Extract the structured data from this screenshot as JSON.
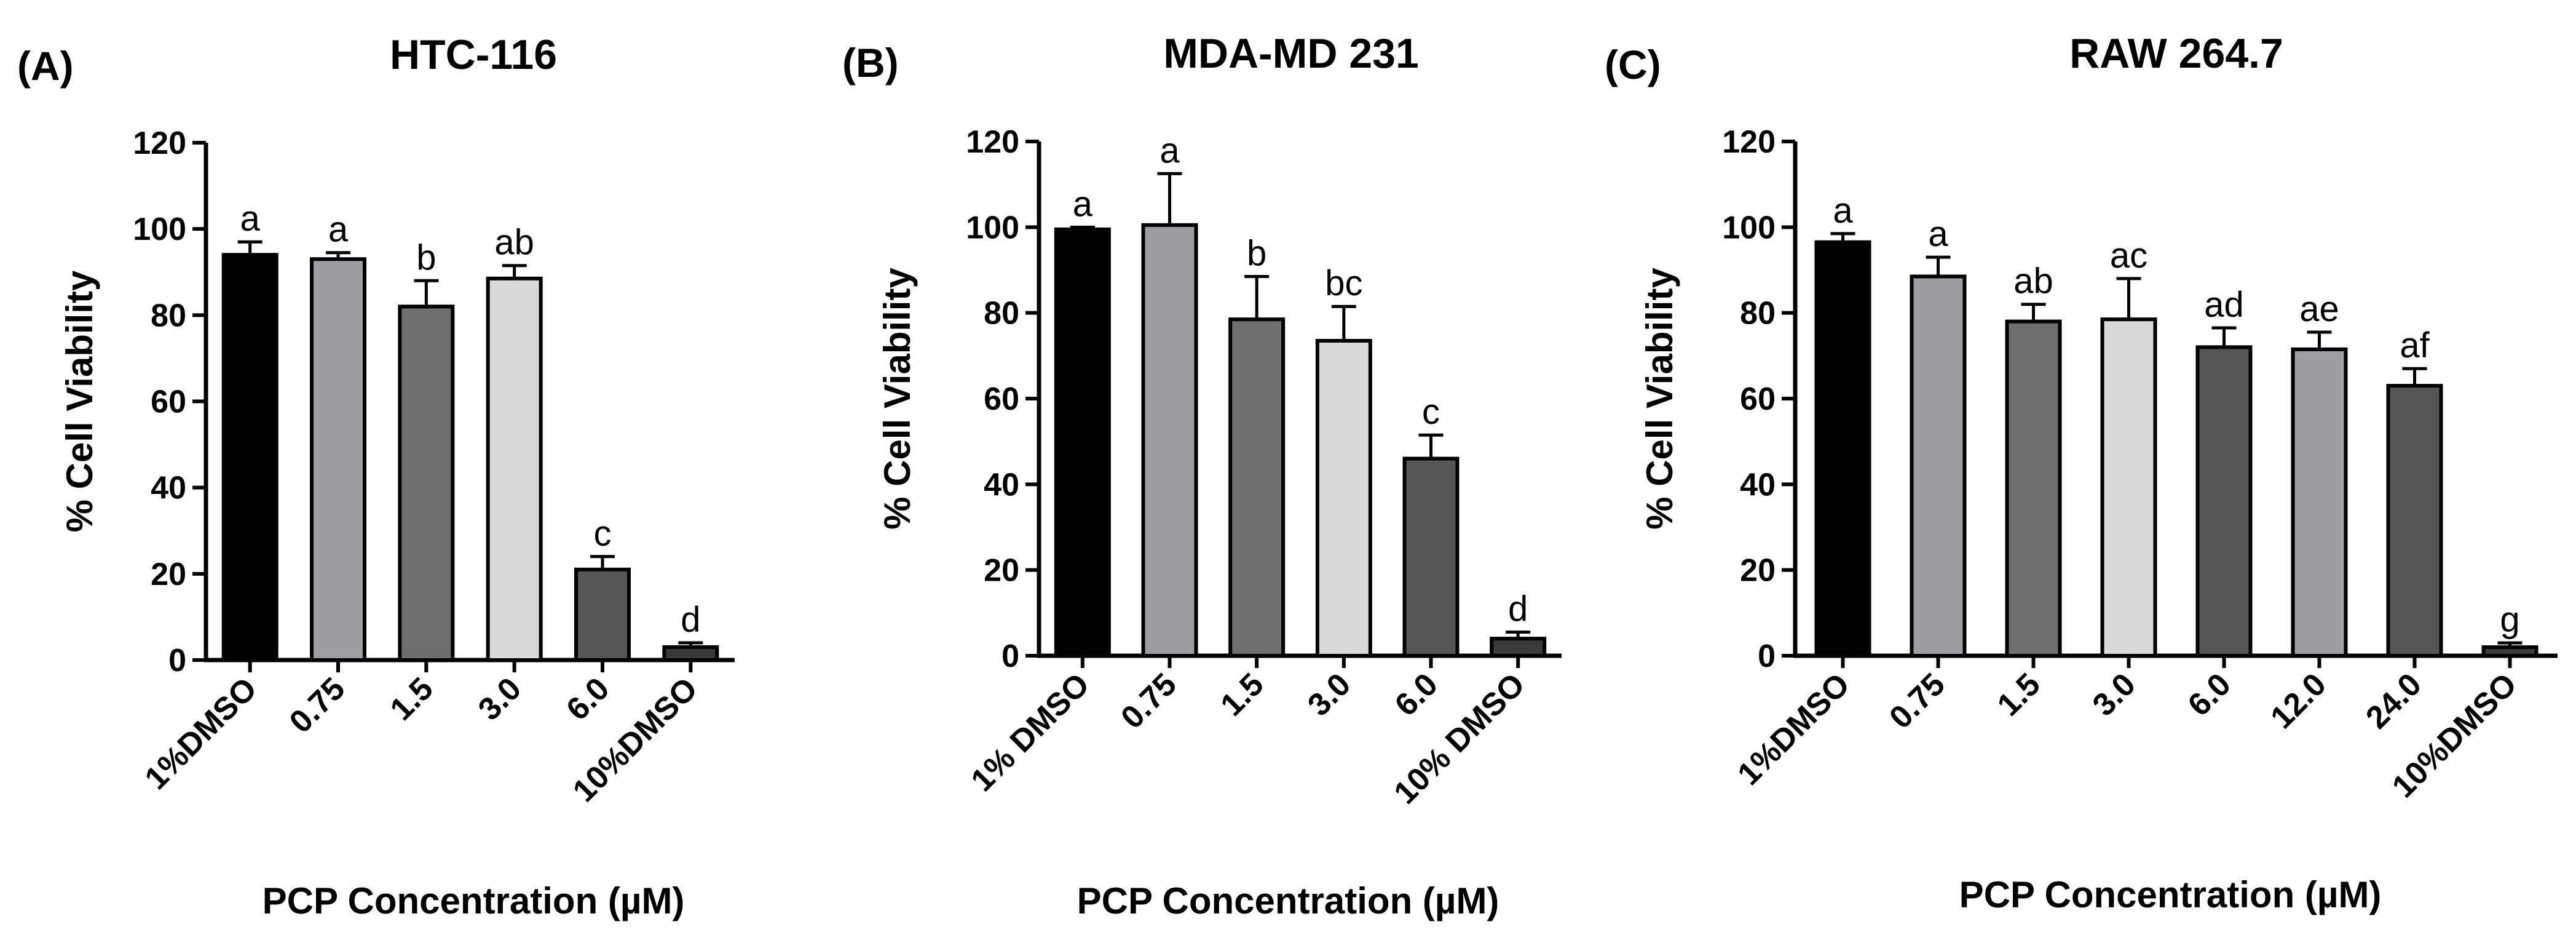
{
  "colors": {
    "background": "#ffffff",
    "axis": "#000000",
    "bar_outline": "#000000"
  },
  "chart_data": [
    {
      "type": "bar",
      "panel_label": "(A)",
      "title": "HTC-116",
      "ylabel": "% Cell Viability",
      "xlabel": "PCP Concentration (µM)",
      "ylim": [
        0,
        120
      ],
      "yticks": [
        "0",
        "20",
        "40",
        "60",
        "80",
        "100",
        "120"
      ],
      "categories": [
        "1%DMSO",
        "0.75",
        "1.5",
        "3.0",
        "6.0",
        "10%DMSO"
      ],
      "values": [
        94,
        93,
        82,
        88.5,
        21,
        3
      ],
      "errors": [
        3,
        1.5,
        6,
        3,
        3,
        1
      ],
      "labels": [
        "a",
        "a",
        "b",
        "ab",
        "c",
        "d"
      ],
      "bar_colors": [
        "#000000",
        "#9d9da2",
        "#6e6e6e",
        "#d9d9d9",
        "#555555",
        "#3a3a3a"
      ]
    },
    {
      "type": "bar",
      "panel_label": "(B)",
      "title": "MDA-MD 231",
      "ylabel": "% Cell Viability",
      "xlabel": "PCP Concentration (µM)",
      "ylim": [
        0,
        120
      ],
      "yticks": [
        "0",
        "20",
        "40",
        "60",
        "80",
        "100",
        "120"
      ],
      "categories": [
        "1% DMSO",
        "0.75",
        "1.5",
        "3.0",
        "6.0",
        "10% DMSO"
      ],
      "values": [
        99.5,
        100.5,
        78.5,
        73.5,
        46,
        4
      ],
      "errors": [
        0.5,
        12,
        10,
        8,
        5.5,
        1.5
      ],
      "labels": [
        "a",
        "a",
        "b",
        "bc",
        "c",
        "d"
      ],
      "bar_colors": [
        "#000000",
        "#9d9da2",
        "#6e6e6e",
        "#d9d9d9",
        "#555555",
        "#3a3a3a"
      ]
    },
    {
      "type": "bar",
      "panel_label": "(C)",
      "title": "RAW 264.7",
      "ylabel": "% Cell Viability",
      "xlabel": "PCP Concentration (µM)",
      "ylim": [
        0,
        120
      ],
      "yticks": [
        "0",
        "20",
        "40",
        "60",
        "80",
        "100",
        "120"
      ],
      "categories": [
        "1%DMSO",
        "0.75",
        "1.5",
        "3.0",
        "6.0",
        "12.0",
        "24.0",
        "10%DMSO"
      ],
      "values": [
        96.5,
        88.5,
        78,
        78.5,
        72,
        71.5,
        63,
        2
      ],
      "errors": [
        2,
        4.5,
        4,
        9.5,
        4.5,
        4,
        4,
        1
      ],
      "labels": [
        "a",
        "a",
        "ab",
        "ac",
        "ad",
        "ae",
        "af",
        "g"
      ],
      "bar_colors": [
        "#000000",
        "#9d9da2",
        "#6e6e6e",
        "#d9d9d9",
        "#555555",
        "#9d9da2",
        "#555555",
        "#3a3a3a"
      ]
    }
  ]
}
